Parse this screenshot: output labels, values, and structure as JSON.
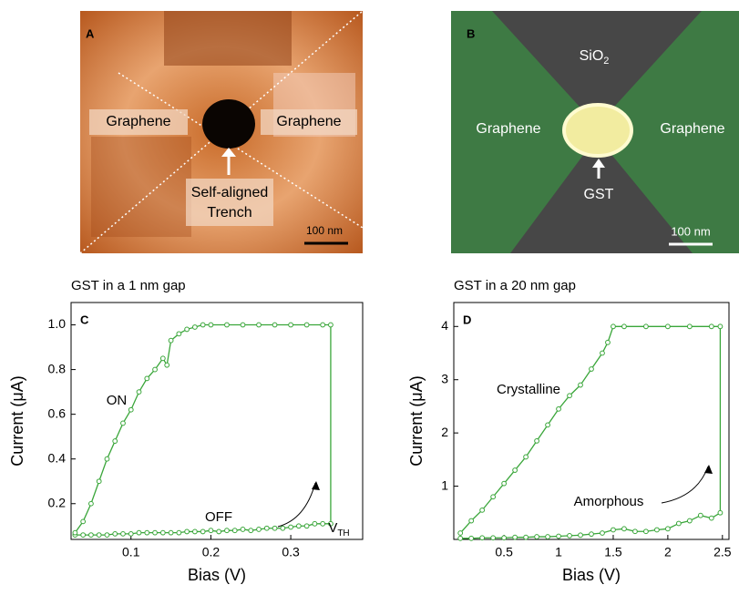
{
  "images": [
    {
      "panel": "A",
      "labels": [
        "Graphene",
        "Graphene"
      ],
      "callout": [
        "Self-aligned",
        "Trench"
      ],
      "scale": "100 nm"
    },
    {
      "panel": "B",
      "labels": [
        "Graphene",
        "Graphene"
      ],
      "top": {
        "text": "SiO",
        "sub": "2"
      },
      "callout": [
        "GST"
      ],
      "scale": "100 nm"
    }
  ],
  "chart_data": [
    {
      "type": "line",
      "panel": "C",
      "title": "GST in a 1 nm gap",
      "xlabel": "Bias (V)",
      "ylabel": "Current (μA)",
      "xlim": [
        0.025,
        0.39
      ],
      "ylim": [
        0.04,
        1.1
      ],
      "xticks": [
        0.1,
        0.2,
        0.3
      ],
      "yticks": [
        0.2,
        0.4,
        0.6,
        0.8,
        {
          "value": 1,
          "label": "1.0"
        }
      ],
      "annotations": [
        {
          "text": "ON"
        },
        {
          "text": "OFF"
        },
        {
          "text": "V",
          "sub": "TH"
        }
      ],
      "series": [
        {
          "color": "#3aa63a",
          "x": [
            0.03,
            0.04,
            0.05,
            0.06,
            0.07,
            0.08,
            0.09,
            0.1,
            0.11,
            0.12,
            0.13,
            0.14,
            0.15,
            0.16,
            0.17,
            0.18,
            0.19,
            0.2,
            0.21,
            0.22,
            0.23,
            0.24,
            0.25,
            0.26,
            0.27,
            0.28,
            0.29,
            0.3,
            0.31,
            0.32,
            0.33,
            0.34,
            0.35,
            0.35,
            0.34,
            0.32,
            0.3,
            0.28,
            0.26,
            0.24,
            0.22,
            0.2,
            0.19,
            0.18,
            0.17,
            0.16,
            0.15,
            0.145,
            0.14,
            0.13,
            0.12,
            0.11,
            0.1,
            0.09,
            0.08,
            0.07,
            0.06,
            0.05,
            0.04,
            0.03
          ],
          "values": [
            0.06,
            0.06,
            0.06,
            0.06,
            0.06,
            0.065,
            0.065,
            0.065,
            0.07,
            0.07,
            0.07,
            0.07,
            0.07,
            0.07,
            0.075,
            0.075,
            0.075,
            0.08,
            0.075,
            0.08,
            0.08,
            0.085,
            0.08,
            0.085,
            0.09,
            0.09,
            0.09,
            0.095,
            0.1,
            0.1,
            0.11,
            0.11,
            0.11,
            1.0,
            1.0,
            1.0,
            1.0,
            1.0,
            1.0,
            1.0,
            1.0,
            1.0,
            1.0,
            0.99,
            0.98,
            0.96,
            0.93,
            0.82,
            0.85,
            0.8,
            0.76,
            0.7,
            0.62,
            0.56,
            0.48,
            0.4,
            0.3,
            0.2,
            0.12,
            0.07
          ]
        }
      ]
    },
    {
      "type": "line",
      "panel": "D",
      "title": "GST in a 20 nm gap",
      "xlabel": "Bias (V)",
      "ylabel": "Current (μA)",
      "xlim": [
        0.04,
        2.56
      ],
      "ylim": [
        0,
        4.45
      ],
      "xticks": [
        0.5,
        1,
        1.5,
        2,
        2.5
      ],
      "yticks": [
        1,
        2,
        3,
        4
      ],
      "annotations": [
        {
          "text": "Crystalline"
        },
        {
          "text": "Amorphous"
        }
      ],
      "series": [
        {
          "color": "#3aa63a",
          "x": [
            0.1,
            0.2,
            0.3,
            0.4,
            0.5,
            0.6,
            0.7,
            0.8,
            0.9,
            1.0,
            1.1,
            1.2,
            1.3,
            1.4,
            1.5,
            1.6,
            1.7,
            1.8,
            1.9,
            2.0,
            2.1,
            2.2,
            2.3,
            2.4,
            2.48,
            2.48,
            2.4,
            2.2,
            2.0,
            1.8,
            1.6,
            1.5,
            1.45,
            1.4,
            1.3,
            1.2,
            1.1,
            1.0,
            0.9,
            0.8,
            0.7,
            0.6,
            0.5,
            0.4,
            0.3,
            0.2,
            0.1
          ],
          "values": [
            0.02,
            0.02,
            0.03,
            0.03,
            0.03,
            0.04,
            0.04,
            0.05,
            0.05,
            0.06,
            0.07,
            0.08,
            0.1,
            0.12,
            0.18,
            0.2,
            0.15,
            0.15,
            0.18,
            0.2,
            0.3,
            0.35,
            0.45,
            0.4,
            0.5,
            4.0,
            4.0,
            4.0,
            4.0,
            4.0,
            4.0,
            4.0,
            3.7,
            3.5,
            3.2,
            2.9,
            2.7,
            2.45,
            2.15,
            1.85,
            1.55,
            1.3,
            1.05,
            0.8,
            0.55,
            0.35,
            0.12
          ]
        }
      ]
    }
  ]
}
